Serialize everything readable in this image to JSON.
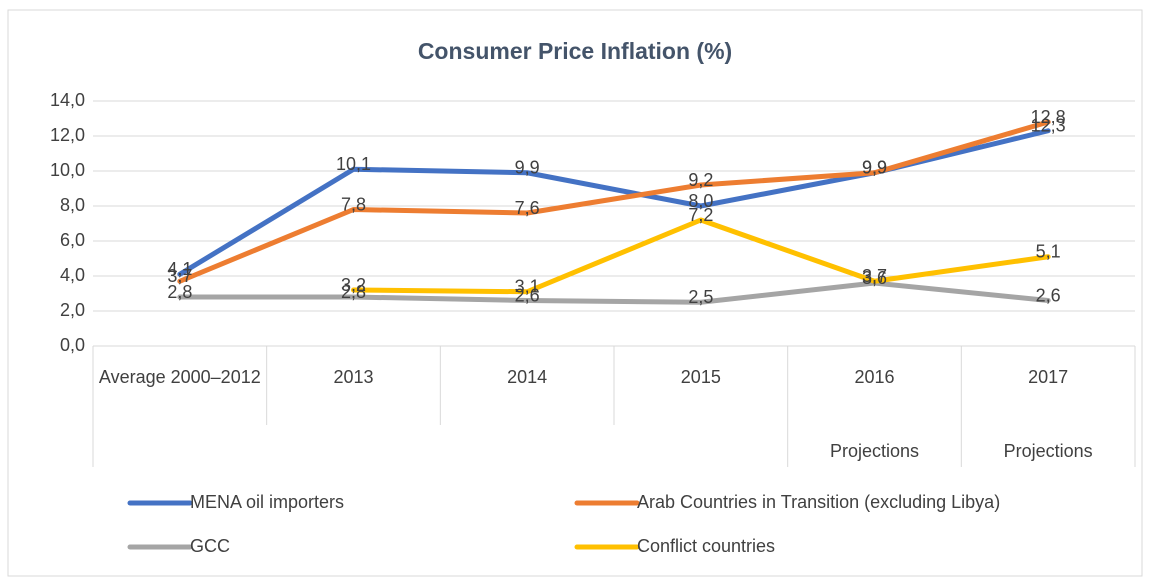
{
  "chart_data": {
    "type": "line",
    "title": "Consumer Price Inflation (%)",
    "categories": [
      "Average  2000–2012",
      "2013",
      "2014",
      "2015",
      "2016",
      "2017"
    ],
    "category_groups": [
      null,
      null,
      null,
      null,
      "Projections",
      "Projections"
    ],
    "ylim": [
      0,
      14
    ],
    "yticks": [
      {
        "value": 0,
        "label": "0,0"
      },
      {
        "value": 2,
        "label": "2,0"
      },
      {
        "value": 4,
        "label": "4,0"
      },
      {
        "value": 6,
        "label": "6,0"
      },
      {
        "value": 8,
        "label": "8,0"
      },
      {
        "value": 10,
        "label": "10,0"
      },
      {
        "value": 12,
        "label": "12,0"
      },
      {
        "value": 14,
        "label": "14,0"
      }
    ],
    "grid": true,
    "series": [
      {
        "name": "MENA oil importers",
        "color": "#4472c4",
        "values": [
          4.1,
          10.1,
          9.9,
          8.0,
          9.9,
          12.3
        ],
        "value_labels": [
          "4,1",
          "10,1",
          "9,9",
          "8,0",
          "9,9",
          "12,3"
        ]
      },
      {
        "name": "Arab Countries in Transition (excluding Libya)",
        "color": "#ed7d31",
        "values": [
          3.7,
          7.8,
          7.6,
          9.2,
          9.9,
          12.8
        ],
        "value_labels": [
          "3,7",
          "7,8",
          "7,6",
          "9,2",
          "9,9",
          "12,8"
        ]
      },
      {
        "name": "GCC",
        "color": "#a5a5a5",
        "values": [
          2.8,
          2.8,
          2.6,
          2.5,
          3.6,
          2.6
        ],
        "value_labels": [
          "2,8",
          "2,8",
          "2,6",
          "2,5",
          "3,6",
          "2,6"
        ]
      },
      {
        "name": "Conflict countries",
        "color": "#ffc000",
        "values": [
          null,
          3.2,
          3.1,
          7.2,
          3.7,
          5.1
        ],
        "value_labels": [
          null,
          "3,2",
          "3,1",
          "7,2",
          "3,7",
          "5,1"
        ]
      }
    ]
  }
}
